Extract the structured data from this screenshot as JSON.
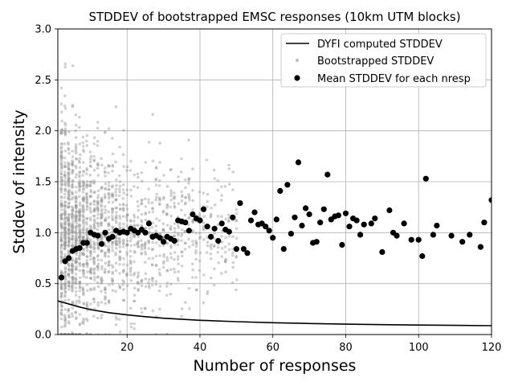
{
  "chart_data": {
    "type": "scatter",
    "title": "STDDEV of bootstrapped EMSC responses (10km UTM blocks)",
    "xlabel": "Number of responses",
    "ylabel": "Stddev of intensity",
    "xlim": [
      1,
      120
    ],
    "ylim": [
      0,
      3
    ],
    "x_ticks": [
      20,
      40,
      60,
      80,
      100,
      120
    ],
    "y_ticks": [
      0.0,
      0.5,
      1.0,
      1.5,
      2.0,
      2.5,
      3.0
    ],
    "x_tick_labels": [
      "20",
      "40",
      "60",
      "80",
      "100",
      "120"
    ],
    "y_tick_labels": [
      "0.0",
      "0.5",
      "1.0",
      "1.5",
      "2.0",
      "2.5",
      "3.0"
    ],
    "grid": true,
    "legend_position": "top-right",
    "legend": [
      "DYFI computed STDDEV",
      "Bootstrapped STDDEV",
      "Mean STDDEV for each nresp"
    ],
    "series": [
      {
        "name": "DYFI computed STDDEV",
        "type": "line",
        "color": "#000000",
        "x": [
          1,
          2,
          3,
          5,
          7,
          10,
          15,
          20,
          25,
          30,
          40,
          50,
          60,
          70,
          80,
          90,
          100,
          110,
          120
        ],
        "values": [
          0.33,
          0.32,
          0.31,
          0.29,
          0.27,
          0.245,
          0.215,
          0.193,
          0.175,
          0.16,
          0.14,
          0.126,
          0.116,
          0.108,
          0.102,
          0.097,
          0.093,
          0.09,
          0.087
        ]
      },
      {
        "name": "Bootstrapped STDDEV",
        "type": "scatter",
        "color": "#999999",
        "description_points": "cloud"
      },
      {
        "name": "Mean STDDEV for each nresp",
        "type": "scatter",
        "color": "#000000",
        "x": [
          2,
          3,
          4,
          5,
          6,
          7,
          8,
          9,
          10,
          11,
          12,
          13,
          14,
          15,
          16,
          17,
          18,
          19,
          20,
          21,
          22,
          23,
          24,
          25,
          26,
          27,
          28,
          29,
          30,
          31,
          32,
          33,
          34,
          35,
          36,
          37,
          38,
          39,
          40,
          41,
          42,
          43,
          44,
          45,
          46,
          47,
          48,
          49,
          50,
          51,
          52,
          53,
          54,
          55,
          56,
          57,
          58,
          59,
          60,
          61,
          62,
          63,
          64,
          65,
          66,
          67,
          68,
          69,
          70,
          71,
          72,
          73,
          74,
          75,
          76,
          77,
          78,
          79,
          80,
          81,
          82,
          83,
          84,
          85,
          87,
          88,
          90,
          92,
          93,
          94,
          96,
          98,
          100,
          101,
          102,
          104,
          105,
          109,
          112,
          114,
          117,
          118,
          120
        ],
        "values": [
          0.56,
          0.72,
          0.75,
          0.82,
          0.84,
          0.85,
          0.9,
          0.9,
          1.0,
          0.98,
          0.97,
          0.89,
          1.0,
          0.94,
          0.96,
          1.02,
          1.0,
          1.01,
          1.0,
          1.04,
          1.02,
          1.0,
          1.03,
          1.0,
          1.09,
          0.96,
          0.97,
          0.95,
          0.91,
          0.96,
          0.94,
          0.92,
          1.12,
          1.11,
          1.1,
          1.02,
          1.18,
          1.14,
          1.12,
          1.23,
          1.06,
          0.96,
          1.04,
          0.92,
          1.09,
          1.03,
          1.01,
          1.15,
          0.84,
          1.29,
          0.84,
          0.8,
          1.12,
          1.2,
          1.08,
          1.09,
          1.06,
          1.02,
          0.95,
          1.13,
          1.41,
          0.84,
          1.47,
          0.99,
          1.15,
          1.69,
          1.07,
          1.24,
          1.18,
          0.9,
          0.91,
          1.1,
          1.23,
          1.57,
          1.13,
          1.16,
          1.17,
          0.88,
          1.19,
          1.06,
          1.14,
          1.12,
          0.98,
          1.08,
          1.09,
          1.14,
          0.81,
          1.22,
          1.0,
          0.97,
          1.09,
          0.93,
          0.93,
          0.77,
          1.53,
          0.98,
          1.07,
          0.97,
          0.91,
          0.98,
          0.86,
          1.1,
          1.32
        ]
      }
    ]
  }
}
